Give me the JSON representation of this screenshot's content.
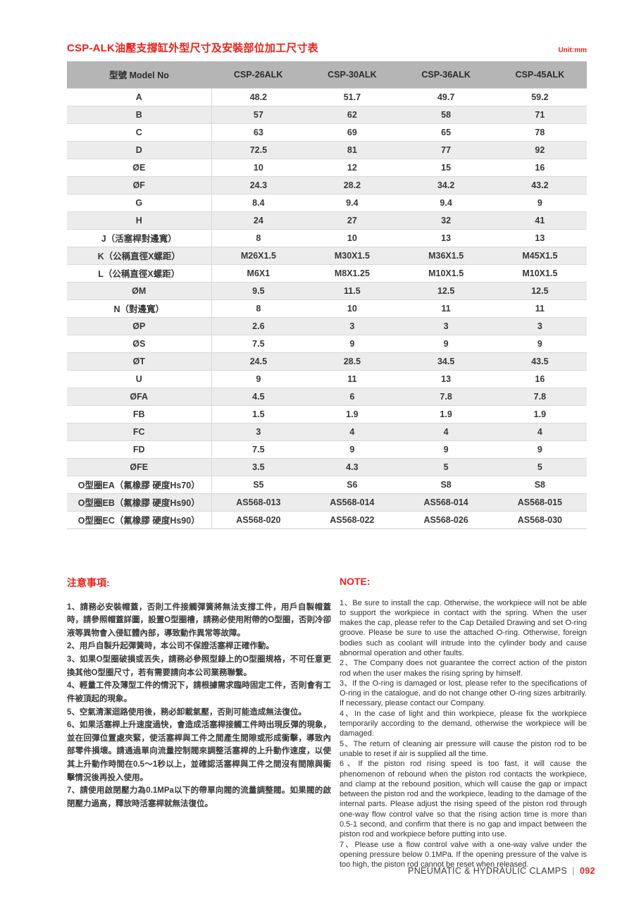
{
  "page": {
    "title": "CSP-ALK油壓支撐缸外型尺寸及安裝部位加工尺寸表",
    "unit_label": "Unit:mm",
    "accent_color": "#e8231c",
    "header_bg_color": "#b5b5b5",
    "alt_row_color": "#ececec"
  },
  "table": {
    "header": [
      "型號 Model No",
      "CSP-26ALK",
      "CSP-30ALK",
      "CSP-36ALK",
      "CSP-45ALK"
    ],
    "rows": [
      {
        "label": "A",
        "values": [
          "48.2",
          "51.7",
          "49.7",
          "59.2"
        ]
      },
      {
        "label": "B",
        "values": [
          "57",
          "62",
          "58",
          "71"
        ]
      },
      {
        "label": "C",
        "values": [
          "63",
          "69",
          "65",
          "78"
        ]
      },
      {
        "label": "D",
        "values": [
          "72.5",
          "81",
          "77",
          "92"
        ]
      },
      {
        "label": "ØE",
        "values": [
          "10",
          "12",
          "15",
          "16"
        ]
      },
      {
        "label": "ØF",
        "values": [
          "24.3",
          "28.2",
          "34.2",
          "43.2"
        ]
      },
      {
        "label": "G",
        "values": [
          "8.4",
          "9.4",
          "9.4",
          "9"
        ]
      },
      {
        "label": "H",
        "values": [
          "24",
          "27",
          "32",
          "41"
        ]
      },
      {
        "label": "J（活塞桿對邊寬）",
        "values": [
          "8",
          "10",
          "13",
          "13"
        ]
      },
      {
        "label": "K（公稱直徑X螺距）",
        "values": [
          "M26X1.5",
          "M30X1.5",
          "M36X1.5",
          "M45X1.5"
        ]
      },
      {
        "label": "L（公稱直徑X螺距）",
        "values": [
          "M6X1",
          "M8X1.25",
          "M10X1.5",
          "M10X1.5"
        ]
      },
      {
        "label": "ØM",
        "values": [
          "9.5",
          "11.5",
          "12.5",
          "12.5"
        ]
      },
      {
        "label": "N（對邊寬）",
        "values": [
          "8",
          "10",
          "11",
          "11"
        ]
      },
      {
        "label": "ØP",
        "values": [
          "2.6",
          "3",
          "3",
          "3"
        ]
      },
      {
        "label": "ØS",
        "values": [
          "7.5",
          "9",
          "9",
          "9"
        ]
      },
      {
        "label": "ØT",
        "values": [
          "24.5",
          "28.5",
          "34.5",
          "43.5"
        ]
      },
      {
        "label": "U",
        "values": [
          "9",
          "11",
          "13",
          "16"
        ]
      },
      {
        "label": "ØFA",
        "values": [
          "4.5",
          "6",
          "7.8",
          "7.8"
        ]
      },
      {
        "label": "FB",
        "values": [
          "1.5",
          "1.9",
          "1.9",
          "1.9"
        ]
      },
      {
        "label": "FC",
        "values": [
          "3",
          "4",
          "4",
          "4"
        ]
      },
      {
        "label": "FD",
        "values": [
          "7.5",
          "9",
          "9",
          "9"
        ]
      },
      {
        "label": "ØFE",
        "values": [
          "3.5",
          "4.3",
          "5",
          "5"
        ]
      },
      {
        "label": "O型圈EA（氟橡膠 硬度Hs70）",
        "values": [
          "S5",
          "S6",
          "S8",
          "S8"
        ]
      },
      {
        "label": "O型圈EB（氟橡膠 硬度Hs90）",
        "values": [
          "AS568-013",
          "AS568-014",
          "AS568-014",
          "AS568-015"
        ]
      },
      {
        "label": "O型圈EC（氟橡膠 硬度Hs90）",
        "values": [
          "AS568-020",
          "AS568-022",
          "AS568-026",
          "AS568-030"
        ]
      }
    ]
  },
  "notes_zh": {
    "heading": "注意事項:",
    "items": [
      "1、請務必安裝帽蓋，否則工件接觸彈簧將無法支撐工件，用戶自製帽蓋時，請參照帽蓋詳圖，設置O型圈槽，請務必使用附帶的O型圈，否則冷卻液等異物會入侵缸體內部，導致動作異常等故障。",
      "2、用戶自製升起彈簧時，本公司不保證活塞桿正確作動。",
      "3、如果O型圈破損或丟失，請務必參照型錄上的O型圈規格，不可任意更換其他O型圈尺寸，若有需要請向本公司業務聯繫。",
      "4、輕量工件及薄型工件的情況下，請根據需求臨時固定工件，否則會有工件被頂起的現象。",
      "5、空氣清潔迴路使用後，務必卸載氣壓，否則可能造成無法復位。",
      "6、如果活塞桿上升速度過快，會造成活塞桿接觸工件時出現反彈的現象，並在回彈位置處夾緊，使活塞桿與工件之間產生間隙或形成衝擊，導致內部零件損壞。請通過單向流量控制閥來調整活塞桿的上升動作速度，以使其上升動作時間在0.5～1秒以上，並確認活塞桿與工件之間沒有間隙與衝擊情況後再投入使用。",
      "7、請使用啟閉壓力為0.1MPa以下的帶單向閥的流量調整閥。如果閥的啟閉壓力過高，釋放時活塞桿就無法復位。"
    ]
  },
  "notes_en": {
    "heading": "NOTE:",
    "items": [
      "1、Be sure to install the cap. Otherwise, the workpiece will not be able to support the workpiece in contact with the spring. When the user makes the cap, please refer to the Cap Detailed Drawing and set O-ring groove. Please be sure to use the attached O-ring. Otherwise, foreign bodies such as coolant will intrude into the cylinder body and cause abnormal operation and other faults.",
      "2、The Company does not guarantee the correct action of the piston rod when the user makes the rising spring by himself.",
      "3、If the O-ring is damaged or lost, please refer to the specifications of O-ring in the catalogue, and do not change other O-ring sizes arbitrarily. If necessary, please contact our Company.",
      "4、In the case of light and thin workpiece, please fix the workpiece temporarily according to the demand, otherwise the workpiece will be damaged.",
      "5、The return of cleaning air pressure will cause the piston rod to be unable to reset if air is supplied all the time.",
      "6、If the piston rod rising speed is too fast, it will cause the phenomenon of rebound when the piston rod contacts the workpiece, and clamp at the rebound position, which will cause the gap or impact between the piston rod and the workpiece, leading to the damage of the internal parts. Please adjust the rising speed of the piston rod through one-way flow control valve so that the rising action time is more than 0.5-1 second, and confirm that there is no gap and impact between the piston rod and workpiece before putting into use.",
      "7、Please use a flow control valve with a one-way valve under the opening pressure below 0.1MPa. If the opening pressure of the valve is too high, the piston rod cannot be reset when released."
    ]
  },
  "footer": {
    "text": "PNEUMATIC & HYDRAULIC CLAMPS",
    "separator": "|",
    "page_number": "092"
  }
}
